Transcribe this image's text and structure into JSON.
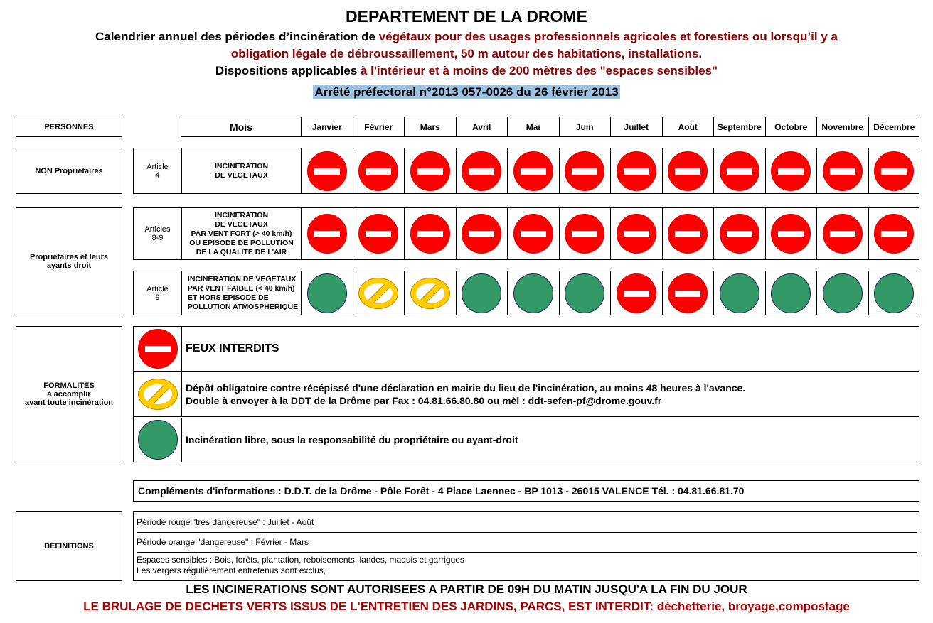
{
  "header": {
    "title": "DEPARTEMENT DE LA DROME",
    "line1_black": "Calendrier annuel des périodes d’incinération de ",
    "line1_red": "végétaux pour des usages professionnels agricoles et forestiers ou lorsqu’il y a",
    "line2_red": "obligation légale de débroussaillement, 50 m autour des habitations, installations.",
    "line3_black": "Dispositions applicables ",
    "line3_red": "à l'intérieur et à moins de 200 mètres des \"espaces sensibles\"",
    "arrete": "Arrêté préfectoral n°2013 057-0026 du 26 février 2013"
  },
  "table": {
    "personnes_header": "PERSONNES",
    "mois_header": "Mois",
    "months": [
      "Janvier",
      "Février",
      "Mars",
      "Avril",
      "Mai",
      "Juin",
      "Juillet",
      "Août",
      "Septembre",
      "Octobre",
      "Novembre",
      "Décembre"
    ],
    "rows": [
      {
        "personne": "NON Propriétaires",
        "article": "Article\n4",
        "description": "INCINERATION\nDE VEGETAUX",
        "status": [
          "interdit",
          "interdit",
          "interdit",
          "interdit",
          "interdit",
          "interdit",
          "interdit",
          "interdit",
          "interdit",
          "interdit",
          "interdit",
          "interdit"
        ]
      },
      {
        "personne": "Propriétaires et leurs\nayants droit",
        "article": "Articles\n8-9",
        "description": "INCINERATION\nDE VEGETAUX\nPAR VENT FORT (> 40 km/h)\nOU EPISODE DE POLLUTION\nDE LA QUALITE DE L'AIR",
        "status": [
          "interdit",
          "interdit",
          "interdit",
          "interdit",
          "interdit",
          "interdit",
          "interdit",
          "interdit",
          "interdit",
          "interdit",
          "interdit",
          "interdit"
        ]
      },
      {
        "article": "Article\n9",
        "description": "INCINERATION DE VEGETAUX\nPAR VENT FAIBLE (< 40 km/h)\nET HORS EPISODE DE\nPOLLUTION ATMOSPHERIQUE",
        "status": [
          "libre",
          "declaration",
          "declaration",
          "libre",
          "libre",
          "libre",
          "interdit",
          "interdit",
          "libre",
          "libre",
          "libre",
          "libre"
        ]
      }
    ]
  },
  "legend": {
    "label": "FORMALITES\nà accomplir\navant toute incinération",
    "items": [
      {
        "icon": "interdit",
        "text": "FEUX INTERDITS"
      },
      {
        "icon": "declaration",
        "text": "Dépôt obligatoire contre récépissé d'une déclaration en mairie du lieu de l'incinération, au moins 48 heures à l'avance.\nDouble à envoyer à la DDT de la Drôme par Fax : 04.81.66.80.80 ou mèl : ddt-sefen-pf@drome.gouv.fr"
      },
      {
        "icon": "libre",
        "text": "Incinération libre, sous la responsabilité du propriétaire ou ayant-droit"
      }
    ]
  },
  "complements": "Compléments d'informations : D.D.T. de la Drôme - Pôle Forêt - 4 Place Laennec - BP 1013 - 26015 VALENCE Tél. : 04.81.66.81.70",
  "definitions": {
    "label": "DEFINITIONS",
    "items": [
      "Période rouge \"très dangereuse\" : Juillet - Août",
      "Période orange \"dangereuse\" : Février - Mars",
      "Espaces sensibles : Bois, forêts, plantation, reboisements, landes, maquis et garrigues\nLes vergers régulièrement entretenus sont exclus,"
    ]
  },
  "footer": {
    "line1": "LES INCINERATIONS SONT AUTORISEES A PARTIR DE 09H DU MATIN JUSQU'A LA FIN DU JOUR",
    "line2": "LE BRULAGE DE DECHETS VERTS ISSUS DE L'ENTRETIEN DES JARDINS, PARCS, EST INTERDIT: déchetterie, broyage,compostage"
  },
  "colors": {
    "interdit": "#fe0000",
    "declaration": "#ffcc00",
    "libre": "#339966",
    "accent_red": "#8b0000",
    "arrete_highlight": "#9cc2e0"
  }
}
